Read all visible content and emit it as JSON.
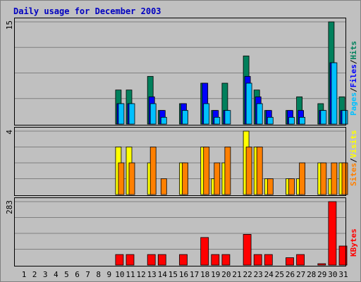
{
  "chart_data": {
    "type": "bar",
    "title": "Daily usage for December 2003",
    "categories": [
      "1",
      "2",
      "3",
      "4",
      "5",
      "6",
      "7",
      "8",
      "9",
      "10",
      "11",
      "12",
      "13",
      "14",
      "15",
      "16",
      "17",
      "18",
      "19",
      "20",
      "21",
      "22",
      "23",
      "24",
      "25",
      "26",
      "27",
      "28",
      "29",
      "30",
      "31"
    ],
    "weekend_days": [
      "6",
      "7",
      "13",
      "14",
      "20",
      "21",
      "27",
      "28"
    ],
    "colors": {
      "background": "#c0c0c0",
      "title": "#0000c0",
      "weekday_label": "#000000",
      "weekend_label": "#007f5f",
      "hits": "#00805c",
      "files": "#0000ff",
      "pages": "#00c0ff",
      "visits": "#ffff00",
      "sites": "#ff8000",
      "kbytes": "#ff0000",
      "separator": "#000000"
    },
    "panels": [
      {
        "id": "hits-files-pages",
        "ymax_label": "15",
        "ylim": [
          0,
          15
        ],
        "series": [
          {
            "name": "Hits",
            "color": "#00805c",
            "values": [
              0,
              0,
              0,
              0,
              0,
              0,
              0,
              0,
              0,
              5,
              5,
              0,
              7,
              2,
              0,
              3,
              0,
              6,
              2,
              6,
              0,
              10,
              5,
              2,
              0,
              2,
              4,
              0,
              3,
              15,
              4
            ]
          },
          {
            "name": "Files",
            "color": "#0000ff",
            "values": [
              0,
              0,
              0,
              0,
              0,
              0,
              0,
              0,
              0,
              3,
              3,
              0,
              4,
              2,
              0,
              3,
              0,
              6,
              2,
              2,
              0,
              7,
              4,
              2,
              0,
              2,
              2,
              0,
              2,
              9,
              2
            ]
          },
          {
            "name": "Pages",
            "color": "#00c0ff",
            "values": [
              0,
              0,
              0,
              0,
              0,
              0,
              0,
              0,
              0,
              3,
              3,
              0,
              3,
              1,
              0,
              2,
              0,
              3,
              1,
              2,
              0,
              6,
              3,
              1,
              0,
              1,
              1,
              0,
              2,
              9,
              2
            ]
          }
        ],
        "legend": [
          {
            "label": "Pages",
            "color": "#00c0ff"
          },
          {
            "label": "/",
            "color": "#000000"
          },
          {
            "label": "Files",
            "color": "#0000ff"
          },
          {
            "label": "/",
            "color": "#000000"
          },
          {
            "label": "Hits",
            "color": "#00805c"
          }
        ]
      },
      {
        "id": "visits-sites",
        "ymax_label": "4",
        "ylim": [
          0,
          4
        ],
        "series": [
          {
            "name": "Visits",
            "color": "#ffff00",
            "values": [
              0,
              0,
              0,
              0,
              0,
              0,
              0,
              0,
              0,
              3,
              3,
              0,
              2,
              0,
              0,
              2,
              0,
              3,
              1,
              2,
              0,
              4,
              3,
              1,
              0,
              1,
              1,
              0,
              2,
              1,
              2
            ]
          },
          {
            "name": "Sites",
            "color": "#ff8000",
            "values": [
              0,
              0,
              0,
              0,
              0,
              0,
              0,
              0,
              0,
              2,
              2,
              0,
              3,
              1,
              0,
              2,
              0,
              3,
              2,
              3,
              0,
              3,
              3,
              1,
              0,
              1,
              2,
              0,
              2,
              2,
              2
            ]
          }
        ],
        "legend": [
          {
            "label": "Sites",
            "color": "#ff8000"
          },
          {
            "label": "/",
            "color": "#000000"
          },
          {
            "label": "Visits",
            "color": "#ffff00"
          }
        ]
      },
      {
        "id": "kbytes",
        "ymax_label": "283",
        "ylim": [
          0,
          283
        ],
        "series": [
          {
            "name": "KBytes",
            "color": "#ff0000",
            "values": [
              0,
              0,
              0,
              0,
              0,
              0,
              0,
              0,
              0,
              47,
              47,
              0,
              47,
              47,
              0,
              47,
              0,
              123,
              47,
              47,
              0,
              137,
              47,
              47,
              0,
              33,
              47,
              0,
              5,
              283,
              85
            ]
          }
        ],
        "legend": [
          {
            "label": "KBytes",
            "color": "#ff0000"
          }
        ]
      }
    ]
  }
}
